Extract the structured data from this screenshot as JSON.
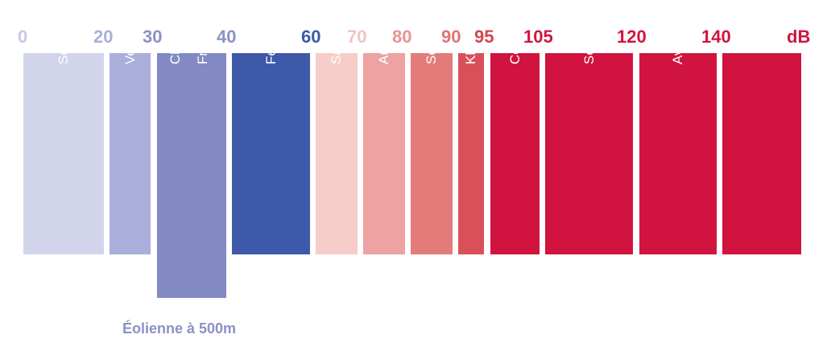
{
  "chart_data": {
    "type": "bar",
    "unit": "dB",
    "ticks": [
      {
        "label": "0",
        "color": "#c6c9e6"
      },
      {
        "label": "20",
        "color": "#a9aedb"
      },
      {
        "label": "30",
        "color": "#8a91c6"
      },
      {
        "label": "40",
        "color": "#8a91c6"
      },
      {
        "label": "60",
        "color": "#3e58aa"
      },
      {
        "label": "70",
        "color": "#f2c3c0"
      },
      {
        "label": "80",
        "color": "#ea9292"
      },
      {
        "label": "90",
        "color": "#e07474"
      },
      {
        "label": "95",
        "color": "#d6444f"
      },
      {
        "label": "105",
        "color": "#d0143f"
      },
      {
        "label": "120",
        "color": "#d0143f"
      },
      {
        "label": "140",
        "color": "#d0143f"
      },
      {
        "label": "dB",
        "color": "#d0143f"
      }
    ],
    "categories": [
      {
        "labels": [
          "Seuil d’audibilité"
        ],
        "from": 0,
        "to": 20,
        "color": "#d2d4ec",
        "text_color": "#ffffff"
      },
      {
        "labels": [
          "Vent léger"
        ],
        "from": 20,
        "to": 30,
        "color": "#a9aedb",
        "text_color": "#ffffff"
      },
      {
        "labels": [
          "Chambre à coucher",
          "Frigidaire"
        ],
        "from": 30,
        "to": 40,
        "color": "#8289c3",
        "text_color": "#ffffff",
        "extended": true
      },
      {
        "labels": [
          "Fenêtre sur rue"
        ],
        "from": 40,
        "to": 60,
        "color": "#3e58aa",
        "text_color": "#ffffff"
      },
      {
        "labels": [
          "Salle de classe"
        ],
        "from": 60,
        "to": 70,
        "color": "#f6cdc9",
        "text_color": "#ffffff"
      },
      {
        "labels": [
          "Automobile"
        ],
        "from": 70,
        "to": 80,
        "color": "#eea2a2",
        "text_color": "#ffffff"
      },
      {
        "labels": [
          "Seuil de danger"
        ],
        "from": 80,
        "to": 90,
        "color": "#e37b7b",
        "text_color": "#ffffff"
      },
      {
        "labels": [
          "Klaxon"
        ],
        "from": 90,
        "to": 95,
        "color": "#da505a",
        "text_color": "#ffffff"
      },
      {
        "labels": [
          "Concert"
        ],
        "from": 95,
        "to": 105,
        "color": "#d0143f",
        "text_color": "#ffffff"
      },
      {
        "labels": [
          "Seuil de la douleur"
        ],
        "from": 105,
        "to": 120,
        "color": "#d0143f",
        "text_color": "#ffffff"
      },
      {
        "labels": [
          "Avion au décollage"
        ],
        "from": 120,
        "to": 140,
        "color": "#d0143f",
        "text_color": "#ffffff"
      },
      {
        "labels": [
          ""
        ],
        "from": 140,
        "to": null,
        "color": "#d0143f",
        "text_color": "#ffffff"
      }
    ],
    "annotation": "Éolienne à 500m",
    "annotation_range": [
      30,
      40
    ]
  }
}
